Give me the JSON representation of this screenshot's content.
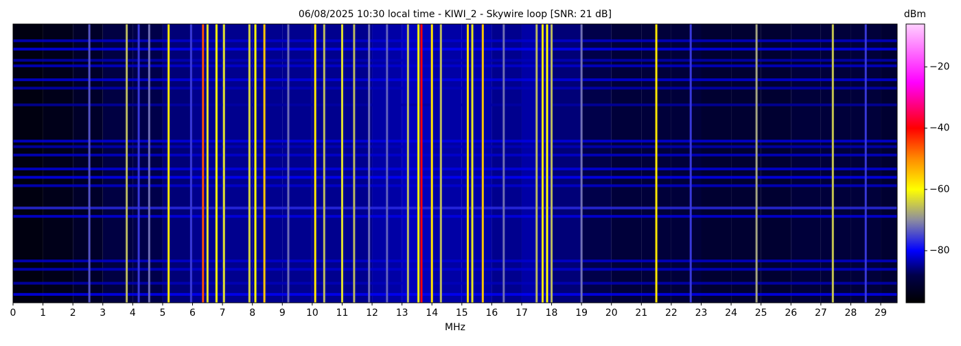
{
  "chart_data": {
    "type": "spectrogram",
    "title": "06/08/2025 10:30 local time - KIWI_2 - Skywire loop [SNR: 21 dB]",
    "x_label": "MHz",
    "colorbar_label": "dBm",
    "xlim": [
      0,
      29.55
    ],
    "xticks": [
      0,
      1,
      2,
      3,
      4,
      5,
      6,
      7,
      8,
      9,
      10,
      11,
      12,
      13,
      14,
      15,
      16,
      17,
      18,
      19,
      20,
      21,
      22,
      23,
      24,
      25,
      26,
      27,
      28,
      29
    ],
    "ylim": [
      0,
      100
    ],
    "clim": [
      -97,
      -6
    ],
    "cticks": [
      {
        "value": -20,
        "label": "−20"
      },
      {
        "value": -40,
        "label": "−40"
      },
      {
        "value": -60,
        "label": "−60"
      },
      {
        "value": -80,
        "label": "−80"
      }
    ],
    "colormap": [
      {
        "value": -97,
        "color": "#000000"
      },
      {
        "value": -88,
        "color": "#00004a"
      },
      {
        "value": -80,
        "color": "#0000ff"
      },
      {
        "value": -70,
        "color": "#8c8ca0"
      },
      {
        "value": -60,
        "color": "#ffff00"
      },
      {
        "value": -50,
        "color": "#ff8c00"
      },
      {
        "value": -40,
        "color": "#ff0000"
      },
      {
        "value": -25,
        "color": "#ff00ff"
      },
      {
        "value": -6,
        "color": "#ffd0ff"
      }
    ],
    "floor": {
      "bins": [
        0,
        1,
        2,
        3,
        4,
        5,
        6,
        7,
        8,
        9,
        10,
        11,
        12,
        13,
        14,
        15,
        16,
        17,
        18,
        19,
        20,
        21,
        22,
        23,
        24,
        25,
        26,
        27,
        28,
        29,
        29.55
      ],
      "values": [
        -95,
        -94,
        -92,
        -89,
        -88,
        -86,
        -85,
        -85,
        -85,
        -85,
        -85,
        -85,
        -84,
        -83,
        -84,
        -84,
        -85,
        -84,
        -86,
        -88,
        -90,
        -90,
        -90,
        -91,
        -91,
        -91,
        -90,
        -90,
        -90,
        -91
      ]
    },
    "signals": {
      "freqs": [
        2.55,
        3.8,
        4.2,
        4.55,
        5.2,
        5.95,
        6.35,
        6.5,
        6.8,
        7.05,
        7.9,
        8.1,
        8.4,
        9.2,
        10.1,
        10.4,
        11.0,
        11.4,
        11.9,
        12.5,
        13.2,
        13.55,
        13.65,
        14.0,
        14.3,
        15.2,
        15.35,
        15.7,
        16.4,
        17.5,
        17.7,
        17.85,
        18.0,
        19.0,
        21.5,
        22.65,
        24.85,
        27.4,
        28.5
      ],
      "levels": [
        -74,
        -66,
        -76,
        -72,
        -58,
        -76,
        -46,
        -62,
        -60,
        -63,
        -64,
        -60,
        -55,
        -72,
        -58,
        -66,
        -63,
        -66,
        -72,
        -73,
        -66,
        -60,
        -40,
        -58,
        -66,
        -57,
        -62,
        -55,
        -72,
        -66,
        -58,
        -60,
        -66,
        -72,
        -58,
        -76,
        -68,
        -65,
        -76
      ]
    },
    "bands": {
      "rows": [
        6,
        9,
        13,
        15,
        20,
        23,
        29,
        42,
        44,
        47,
        52,
        55,
        58,
        66,
        69,
        85,
        88,
        93,
        97
      ],
      "levels": [
        -82,
        -80,
        -83,
        -82,
        -81,
        -83,
        -84,
        -81,
        -83,
        -82,
        -81,
        -80,
        -82,
        -77,
        -81,
        -82,
        -82,
        -83,
        -80
      ]
    }
  }
}
